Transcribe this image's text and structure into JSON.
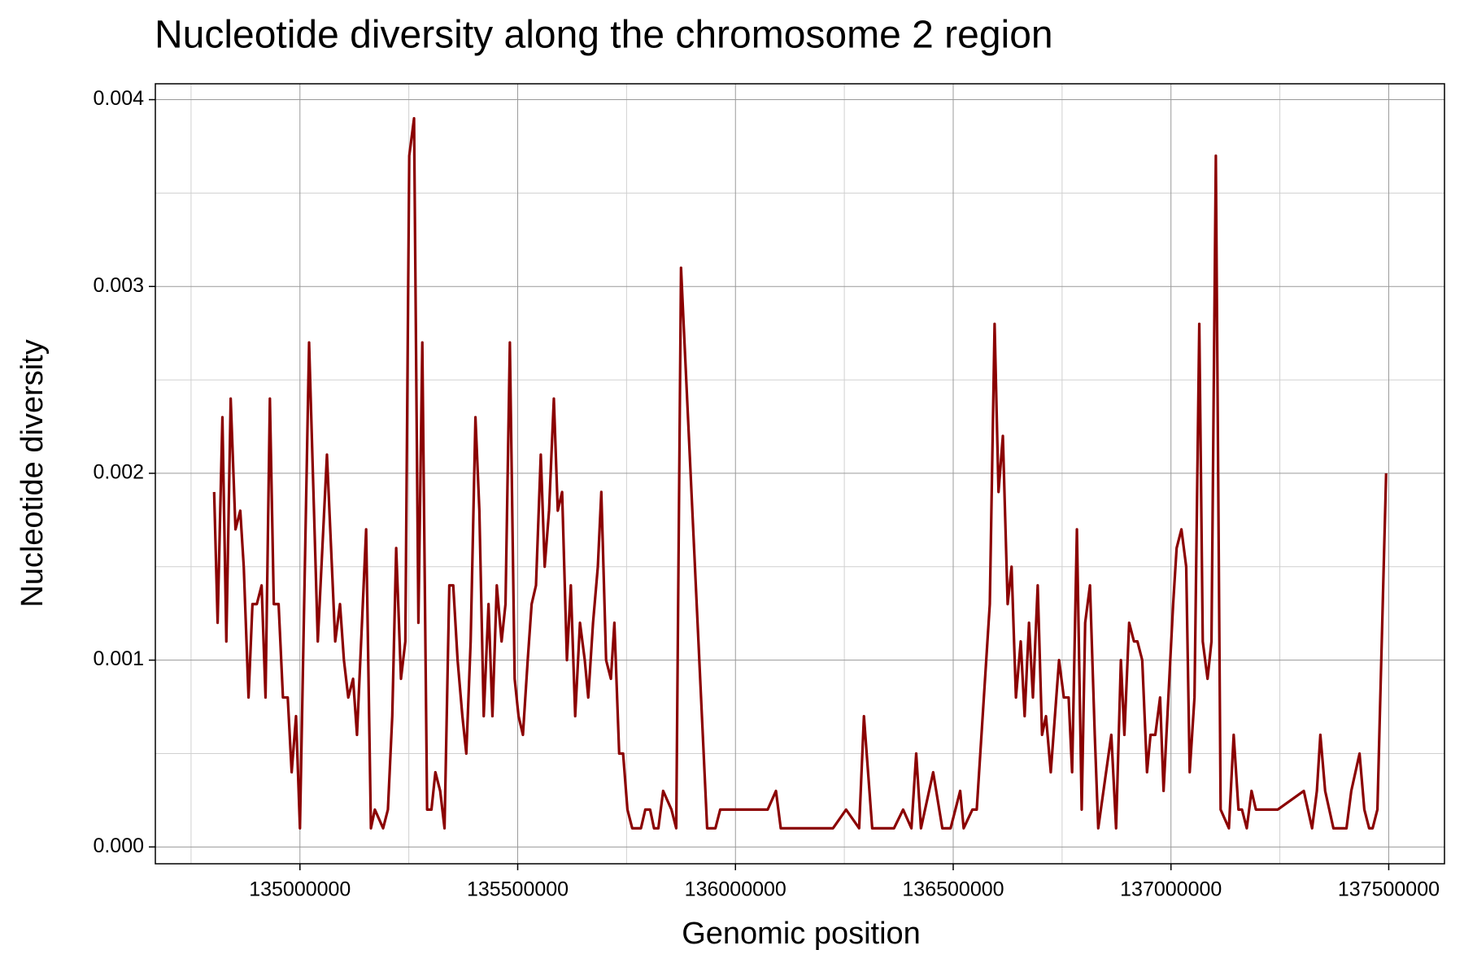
{
  "chart_data": {
    "type": "line",
    "title": "Nucleotide diversity along the chromosome 2 region",
    "x_label": "Genomic position",
    "y_label": "Nucleotide diversity",
    "xlim": [
      134668000,
      137628000
    ],
    "ylim": [
      -9e-05,
      0.004085
    ],
    "xticks": [
      135000000,
      135500000,
      136000000,
      136500000,
      137000000,
      137500000
    ],
    "yticks": [
      {
        "value": 0,
        "label": "0.000"
      },
      {
        "value": 0.001,
        "label": "0.001"
      },
      {
        "value": 0.002,
        "label": "0.002"
      },
      {
        "value": 0.003,
        "label": "0.003"
      },
      {
        "value": 0.004,
        "label": "0.004"
      }
    ],
    "x_minor_ticks": [
      134750000,
      135250000,
      135750000,
      136250000,
      136750000,
      137250000
    ],
    "y_minor_ticks": [
      0.0005,
      0.0015,
      0.0025,
      0.0035
    ],
    "grid": true,
    "x": [
      134803000,
      134811000,
      134822000,
      134831000,
      134841000,
      134852000,
      134863000,
      134871000,
      134882000,
      134891000,
      134901000,
      134912000,
      134921000,
      134931000,
      134940000,
      134951000,
      134961000,
      134972000,
      134981000,
      134991000,
      135000000,
      135021000,
      135041000,
      135062000,
      135081000,
      135092000,
      135101000,
      135111000,
      135122000,
      135131000,
      135152000,
      135163000,
      135172000,
      135191000,
      135202000,
      135212000,
      135221000,
      135232000,
      135242000,
      135251000,
      135262000,
      135272000,
      135281000,
      135292000,
      135302000,
      135311000,
      135322000,
      135332000,
      135343000,
      135352000,
      135362000,
      135373000,
      135382000,
      135392000,
      135403000,
      135412000,
      135422000,
      135433000,
      135442000,
      135452000,
      135463000,
      135472000,
      135482000,
      135493000,
      135502000,
      135512000,
      135523000,
      135532000,
      135542000,
      135553000,
      135562000,
      135572000,
      135583000,
      135592000,
      135602000,
      135613000,
      135622000,
      135632000,
      135643000,
      135654000,
      135662000,
      135673000,
      135684000,
      135692000,
      135703000,
      135714000,
      135722000,
      135733000,
      135742000,
      135752000,
      135763000,
      135783000,
      135793000,
      135804000,
      135813000,
      135823000,
      135834000,
      135853000,
      135864000,
      135875000,
      135935000,
      135954000,
      135965000,
      135984000,
      136074000,
      136093000,
      136104000,
      136184000,
      136224000,
      136254000,
      136284000,
      136295000,
      136314000,
      136364000,
      136385000,
      136404000,
      136415000,
      136426000,
      136454000,
      136475000,
      136494000,
      136516000,
      136524000,
      136544000,
      136554000,
      136584000,
      136595000,
      136604000,
      136614000,
      136625000,
      136634000,
      136644000,
      136655000,
      136664000,
      136674000,
      136683000,
      136694000,
      136704000,
      136713000,
      136724000,
      136743000,
      136754000,
      136765000,
      136773000,
      136784000,
      136795000,
      136803000,
      136814000,
      136825000,
      136833000,
      136863000,
      136874000,
      136885000,
      136893000,
      136904000,
      136915000,
      136923000,
      136934000,
      136945000,
      136953000,
      136964000,
      136975000,
      136983000,
      136994000,
      137005000,
      137013000,
      137024000,
      137035000,
      137043000,
      137054000,
      137065000,
      137073000,
      137084000,
      137093000,
      137103000,
      137114000,
      137133000,
      137144000,
      137155000,
      137163000,
      137174000,
      137185000,
      137195000,
      137245000,
      137305000,
      137324000,
      137335000,
      137343000,
      137354000,
      137373000,
      137403000,
      137414000,
      137433000,
      137444000,
      137455000,
      137463000,
      137474000,
      137494000
    ],
    "series": [
      {
        "color": "#8b0000",
        "values": [
          0.0019,
          0.0012,
          0.0023,
          0.0011,
          0.0024,
          0.0017,
          0.0018,
          0.0015,
          0.0008,
          0.0013,
          0.0013,
          0.0014,
          0.0008,
          0.0024,
          0.0013,
          0.0013,
          0.0008,
          0.0008,
          0.0004,
          0.0007,
          0.0001,
          0.0027,
          0.0011,
          0.0021,
          0.0011,
          0.0013,
          0.001,
          0.0008,
          0.0009,
          0.0006,
          0.0017,
          0.0001,
          0.0002,
          0.0001,
          0.0002,
          0.0007,
          0.0016,
          0.0009,
          0.0011,
          0.0037,
          0.0039,
          0.0012,
          0.0027,
          0.0002,
          0.0002,
          0.0004,
          0.0003,
          0.0001,
          0.0014,
          0.0014,
          0.001,
          0.0007,
          0.0005,
          0.0011,
          0.0023,
          0.0018,
          0.0007,
          0.0013,
          0.0007,
          0.0014,
          0.0011,
          0.0013,
          0.0027,
          0.0009,
          0.0007,
          0.0006,
          0.001,
          0.0013,
          0.0014,
          0.0021,
          0.0015,
          0.0018,
          0.0024,
          0.0018,
          0.0019,
          0.001,
          0.0014,
          0.0007,
          0.0012,
          0.001,
          0.0008,
          0.0012,
          0.0015,
          0.0019,
          0.001,
          0.0009,
          0.0012,
          0.0005,
          0.0005,
          0.0002,
          0.0001,
          0.0001,
          0.0002,
          0.0002,
          0.0001,
          0.0001,
          0.0003,
          0.0002,
          0.0001,
          0.0031,
          0.0001,
          0.0001,
          0.0002,
          0.0002,
          0.0002,
          0.0003,
          0.0001,
          0.0001,
          0.0001,
          0.0002,
          0.0001,
          0.0007,
          0.0001,
          0.0001,
          0.0002,
          0.0001,
          0.0005,
          0.0001,
          0.0004,
          0.0001,
          0.0001,
          0.0003,
          0.0001,
          0.0002,
          0.0002,
          0.0013,
          0.0028,
          0.0019,
          0.0022,
          0.0013,
          0.0015,
          0.0008,
          0.0011,
          0.0007,
          0.0012,
          0.0008,
          0.0014,
          0.0006,
          0.0007,
          0.0004,
          0.001,
          0.0008,
          0.0008,
          0.0004,
          0.0017,
          0.0002,
          0.0012,
          0.0014,
          0.0006,
          0.0001,
          0.0006,
          0.0001,
          0.001,
          0.0006,
          0.0012,
          0.0011,
          0.0011,
          0.001,
          0.0004,
          0.0006,
          0.0006,
          0.0008,
          0.0003,
          0.0008,
          0.0013,
          0.0016,
          0.0017,
          0.0015,
          0.0004,
          0.0008,
          0.0028,
          0.0011,
          0.0009,
          0.0011,
          0.0037,
          0.0002,
          0.0001,
          0.0006,
          0.0002,
          0.0002,
          0.0001,
          0.0003,
          0.0002,
          0.0002,
          0.0003,
          0.0001,
          0.0003,
          0.0006,
          0.0003,
          0.0001,
          0.0001,
          0.0003,
          0.0005,
          0.0002,
          0.0001,
          0.0001,
          0.0002,
          0.002
        ]
      }
    ]
  }
}
